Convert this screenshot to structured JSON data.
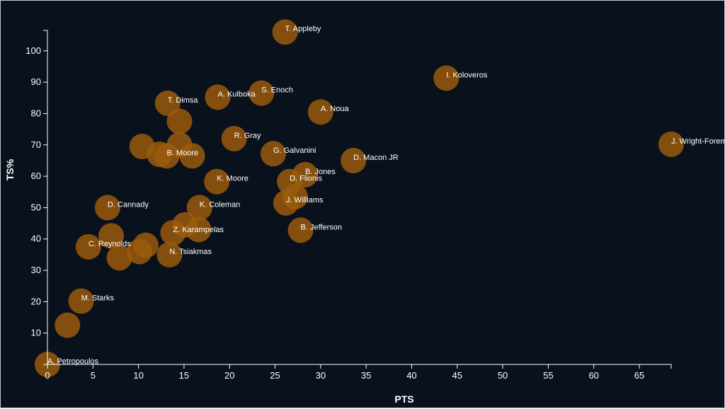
{
  "colors": {
    "background": "#08111c",
    "point": "#9a5a0c",
    "axis": "#ffffff",
    "text": "#ffffff"
  },
  "chart_data": {
    "type": "scatter",
    "title": "",
    "xlabel": "PTS",
    "ylabel": "TS%",
    "xlim": [
      0,
      68.5
    ],
    "ylim": [
      0,
      106.5
    ],
    "xticks": [
      0,
      5,
      10,
      15,
      20,
      25,
      30,
      35,
      40,
      45,
      50,
      55,
      60,
      65
    ],
    "yticks": [
      10,
      20,
      30,
      40,
      50,
      60,
      70,
      80,
      90,
      100
    ],
    "points": [
      {
        "label": "A. Petropoulos",
        "x": 0,
        "y": 0
      },
      {
        "label": "",
        "x": 2.2,
        "y": 12.5
      },
      {
        "label": "M. Starks",
        "x": 3.7,
        "y": 20.2
      },
      {
        "label": "C. Reynolds",
        "x": 4.5,
        "y": 37.5
      },
      {
        "label": "D. Cannady",
        "x": 6.6,
        "y": 50
      },
      {
        "label": "",
        "x": 7.0,
        "y": 41
      },
      {
        "label": "",
        "x": 7.9,
        "y": 34
      },
      {
        "label": "",
        "x": 10.1,
        "y": 36
      },
      {
        "label": "",
        "x": 10.8,
        "y": 38
      },
      {
        "label": "",
        "x": 10.4,
        "y": 69.5
      },
      {
        "label": "",
        "x": 12.3,
        "y": 67
      },
      {
        "label": "B. Moore",
        "x": 13.1,
        "y": 66.5
      },
      {
        "label": "T. Dimsa",
        "x": 13.2,
        "y": 83.3
      },
      {
        "label": "N. Tsiakmas",
        "x": 13.4,
        "y": 35
      },
      {
        "label": "Z. Karampelas",
        "x": 13.8,
        "y": 42
      },
      {
        "label": "",
        "x": 14.5,
        "y": 70
      },
      {
        "label": "",
        "x": 14.5,
        "y": 77.5
      },
      {
        "label": "",
        "x": 15.1,
        "y": 44.5
      },
      {
        "label": "",
        "x": 15.9,
        "y": 66.5
      },
      {
        "label": "",
        "x": 16.6,
        "y": 43
      },
      {
        "label": "K. Coleman",
        "x": 16.7,
        "y": 50
      },
      {
        "label": "K. Moore",
        "x": 18.6,
        "y": 58.3
      },
      {
        "label": "A. Kulboka",
        "x": 18.7,
        "y": 85.2
      },
      {
        "label": "R. Gray",
        "x": 20.5,
        "y": 72
      },
      {
        "label": "S. Enoch",
        "x": 23.5,
        "y": 86.5
      },
      {
        "label": "G. Galvanini",
        "x": 24.8,
        "y": 67.2
      },
      {
        "label": "T. Appleby",
        "x": 26.1,
        "y": 106
      },
      {
        "label": "J. Williams",
        "x": 26.2,
        "y": 51.5
      },
      {
        "label": "D. Flionis",
        "x": 26.6,
        "y": 58.3
      },
      {
        "label": "",
        "x": 27.2,
        "y": 53.5
      },
      {
        "label": "B. Jefferson",
        "x": 27.8,
        "y": 42.8
      },
      {
        "label": "B. Jones",
        "x": 28.3,
        "y": 60.5
      },
      {
        "label": "A. Noua",
        "x": 30.0,
        "y": 80.5
      },
      {
        "label": "D. Macon JR",
        "x": 33.6,
        "y": 65
      },
      {
        "label": "I. Koloveros",
        "x": 43.8,
        "y": 91.3
      },
      {
        "label": "J. Wright-Foreman",
        "x": 68.5,
        "y": 70.2
      }
    ]
  }
}
